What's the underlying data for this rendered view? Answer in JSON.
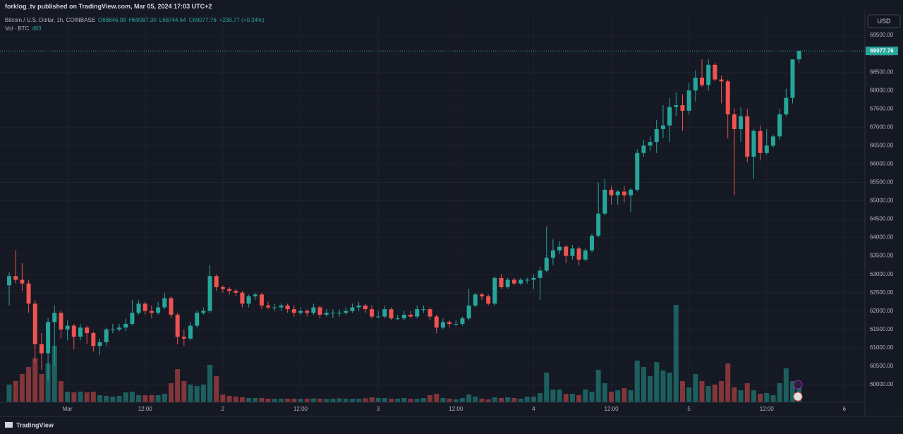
{
  "header": {
    "publisher": "forklog_tv published on TradingView.com, Mar 05, 2024 17:03 UTC+2"
  },
  "chart_data": {
    "type": "candlestick",
    "title": "Bitcoin / U.S. Dollar, 1h, COINBASE",
    "ohlc_labels": [
      "O68846.99",
      "H69087.30",
      "L68744.64",
      "C69077.76"
    ],
    "change": "+230.77 (+0.34%)",
    "volume_label": "Vol · BTC",
    "currency": "USD",
    "up_color": "#26a69a",
    "down_color": "#ef5350",
    "grid": true,
    "open": [
      62700,
      62950,
      62850,
      62750,
      62200,
      61100,
      60850,
      61700,
      61950,
      61500,
      61600,
      61300,
      61550,
      61400,
      61050,
      61150,
      61500,
      61500,
      61550,
      61650,
      61950,
      62200,
      62000,
      61950,
      62100,
      62350,
      61900,
      61300,
      61250,
      61600,
      61950,
      62000,
      62950,
      62650,
      62600,
      62550,
      62500,
      62200,
      62400,
      62450,
      62150,
      62100,
      62100,
      62150,
      62050,
      61950,
      62000,
      61950,
      62100,
      61900,
      61950,
      61950,
      61950,
      62000,
      62100,
      62150,
      62050,
      61850,
      61850,
      62050,
      61800,
      61800,
      61900,
      61850,
      62050,
      62050,
      61850,
      61550,
      61700,
      61650,
      61650,
      61800,
      62150,
      62450,
      62400,
      62200,
      62900,
      62650,
      62850,
      62750,
      62850,
      62850,
      62900,
      63100,
      63450,
      63650,
      63750,
      63500,
      63700,
      63400,
      63650,
      64050,
      64650,
      65300,
      65150,
      65250,
      65150,
      65300,
      66300,
      66500,
      66600,
      66950,
      67050,
      67550,
      67600,
      67450,
      68000,
      68350,
      68150,
      68700,
      68300,
      68250,
      67350,
      66950,
      67300,
      66200,
      66900,
      66300,
      66500,
      66750,
      67350,
      67800,
      68846.99
    ],
    "high": [
      63050,
      63650,
      63300,
      62850,
      62300,
      61400,
      61800,
      62150,
      62000,
      61750,
      61650,
      61650,
      61600,
      61450,
      61250,
      61550,
      61650,
      61650,
      61800,
      62300,
      62300,
      62250,
      62150,
      62250,
      62500,
      62400,
      61950,
      61500,
      61700,
      62000,
      62100,
      63250,
      63000,
      62700,
      62650,
      62600,
      62550,
      62450,
      62500,
      62500,
      62250,
      62200,
      62200,
      62200,
      62150,
      62100,
      62050,
      62200,
      62150,
      62050,
      62050,
      62050,
      62100,
      62200,
      62250,
      62200,
      62150,
      62000,
      62150,
      62100,
      61900,
      62000,
      62000,
      62150,
      62150,
      62100,
      61900,
      61800,
      61750,
      61750,
      61850,
      62600,
      62500,
      62500,
      62450,
      62950,
      63000,
      62900,
      62900,
      62900,
      62900,
      63000,
      63200,
      64300,
      63950,
      63900,
      63800,
      63800,
      63750,
      63700,
      64100,
      65500,
      65600,
      65400,
      65300,
      65400,
      65350,
      66400,
      66650,
      66750,
      67200,
      67600,
      67800,
      67950,
      67900,
      68200,
      68550,
      68850,
      68850,
      68750,
      68400,
      68300,
      67500,
      67550,
      67500,
      66950,
      67050,
      66950,
      66800,
      67500,
      68050,
      68850,
      69087.3
    ],
    "low": [
      62150,
      62750,
      62550,
      61950,
      60600,
      60400,
      60100,
      60500,
      61250,
      61200,
      60950,
      61200,
      61100,
      60900,
      60800,
      61050,
      61400,
      61450,
      61450,
      61600,
      61900,
      61900,
      61800,
      61900,
      62050,
      61800,
      61100,
      61050,
      61200,
      61550,
      61900,
      61950,
      62550,
      62500,
      62450,
      62400,
      62100,
      62100,
      62300,
      62050,
      62050,
      62000,
      62000,
      61950,
      61850,
      61900,
      61850,
      61900,
      61800,
      61850,
      61800,
      61850,
      61900,
      61950,
      62000,
      61950,
      61800,
      61800,
      61800,
      61750,
      61750,
      61750,
      61800,
      61800,
      61950,
      61750,
      61400,
      61500,
      61550,
      61600,
      61600,
      61750,
      62100,
      62300,
      62150,
      62150,
      62600,
      62600,
      62700,
      62700,
      62750,
      62600,
      62300,
      63050,
      63250,
      63550,
      63300,
      63400,
      63250,
      63350,
      63600,
      64000,
      64600,
      64900,
      64900,
      64950,
      64700,
      65250,
      66200,
      66350,
      66300,
      66700,
      66600,
      67300,
      66900,
      67350,
      67700,
      68100,
      68000,
      68250,
      67650,
      66700,
      65150,
      66600,
      66050,
      65600,
      66100,
      66250,
      66450,
      66650,
      67300,
      67650,
      68744.64
    ],
    "close": [
      62950,
      62850,
      62750,
      62200,
      61100,
      60850,
      61700,
      61950,
      61500,
      61600,
      61300,
      61550,
      61400,
      61050,
      61150,
      61500,
      61500,
      61550,
      61650,
      61950,
      62200,
      62000,
      61950,
      62100,
      62350,
      61900,
      61300,
      61250,
      61600,
      61950,
      62000,
      62950,
      62650,
      62600,
      62550,
      62500,
      62200,
      62400,
      62450,
      62150,
      62100,
      62100,
      62150,
      62050,
      61950,
      62000,
      61950,
      62100,
      61900,
      61950,
      61950,
      61950,
      62000,
      62100,
      62150,
      62050,
      61850,
      61850,
      62050,
      61800,
      61800,
      61900,
      61850,
      62050,
      62050,
      61850,
      61550,
      61700,
      61650,
      61650,
      61800,
      62150,
      62450,
      62400,
      62200,
      62900,
      62650,
      62850,
      62750,
      62850,
      62850,
      62900,
      63100,
      63450,
      63650,
      63750,
      63500,
      63700,
      63400,
      63650,
      64050,
      64650,
      65300,
      65150,
      65250,
      65150,
      65300,
      66300,
      66500,
      66600,
      66950,
      67050,
      67550,
      67600,
      67450,
      68000,
      68350,
      68150,
      68700,
      68300,
      68250,
      67350,
      66950,
      67300,
      66200,
      66900,
      66300,
      66500,
      66750,
      67350,
      67800,
      68846.99,
      69077.76
    ],
    "volume": [
      500,
      600,
      800,
      1000,
      1250,
      800,
      1100,
      1600,
      600,
      300,
      280,
      300,
      280,
      300,
      200,
      180,
      160,
      180,
      280,
      300,
      200,
      200,
      200,
      200,
      240,
      540,
      940,
      600,
      500,
      460,
      500,
      1060,
      740,
      220,
      180,
      160,
      140,
      120,
      120,
      120,
      100,
      100,
      100,
      100,
      100,
      100,
      100,
      110,
      100,
      100,
      100,
      110,
      100,
      100,
      100,
      110,
      140,
      120,
      120,
      100,
      100,
      120,
      100,
      100,
      120,
      200,
      240,
      120,
      100,
      80,
      120,
      220,
      160,
      100,
      80,
      140,
      120,
      140,
      120,
      100,
      160,
      160,
      260,
      840,
      360,
      360,
      240,
      240,
      200,
      360,
      300,
      920,
      540,
      300,
      340,
      400,
      340,
      1180,
      1000,
      740,
      1140,
      900,
      840,
      2760,
      600,
      420,
      800,
      600,
      460,
      500,
      600,
      1100,
      420,
      340,
      540,
      340,
      240,
      260,
      200,
      540,
      960,
      600,
      493
    ],
    "xlim": [
      -1.42,
      132.17
    ],
    "xticks": [
      {
        "value": 9,
        "label": "Mar"
      },
      {
        "value": 21,
        "label": "12:00"
      },
      {
        "value": 33,
        "label": "2"
      },
      {
        "value": 45,
        "label": "12:00"
      },
      {
        "value": 57,
        "label": "3"
      },
      {
        "value": 69,
        "label": "12:00"
      },
      {
        "value": 81,
        "label": "4"
      },
      {
        "value": 93,
        "label": "12:00"
      },
      {
        "value": 105,
        "label": "5"
      },
      {
        "value": 117,
        "label": "12:00"
      },
      {
        "value": 129,
        "label": "6"
      }
    ],
    "ylim": [
      59518,
      70117
    ],
    "yticks": [
      {
        "value": 60000,
        "label": "60000.00"
      },
      {
        "value": 60500,
        "label": "60500.00"
      },
      {
        "value": 61000,
        "label": "61000.00"
      },
      {
        "value": 61500,
        "label": "61500.00"
      },
      {
        "value": 62000,
        "label": "62000.00"
      },
      {
        "value": 62500,
        "label": "62500.00"
      },
      {
        "value": 63000,
        "label": "63000.00"
      },
      {
        "value": 63500,
        "label": "63500.00"
      },
      {
        "value": 64000,
        "label": "64000.00"
      },
      {
        "value": 64500,
        "label": "64500.00"
      },
      {
        "value": 65000,
        "label": "65000.00"
      },
      {
        "value": 65500,
        "label": "65500.00"
      },
      {
        "value": 66000,
        "label": "66000.00"
      },
      {
        "value": 66500,
        "label": "66500.00"
      },
      {
        "value": 67000,
        "label": "67000.00"
      },
      {
        "value": 67500,
        "label": "67500.00"
      },
      {
        "value": 68000,
        "label": "68000.00"
      },
      {
        "value": 68500,
        "label": "68500.00"
      },
      {
        "value": 69000,
        "label": "69000.00"
      },
      {
        "value": 69500,
        "label": "69500.00"
      }
    ]
  },
  "footer": {
    "brand": "TradingView"
  }
}
